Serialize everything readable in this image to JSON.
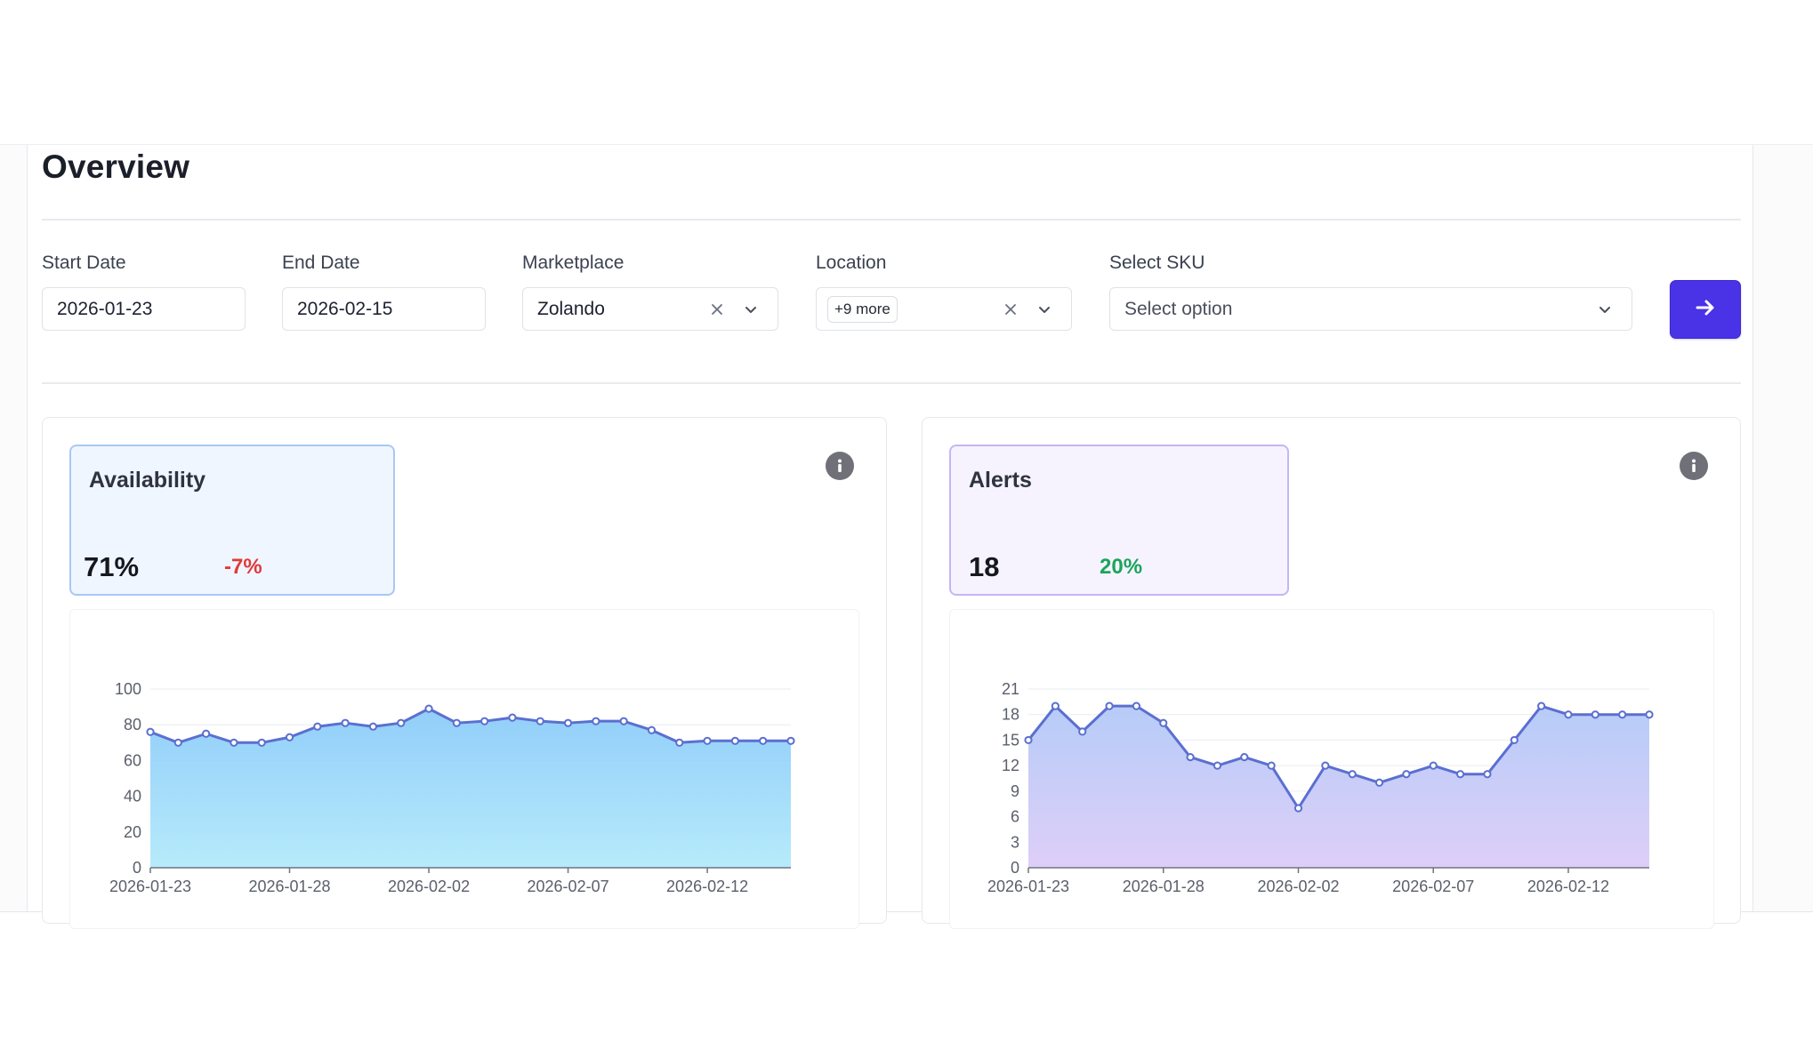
{
  "page": {
    "title": "Overview"
  },
  "filters": {
    "start_date": {
      "label": "Start Date",
      "value": "2026-01-23"
    },
    "end_date": {
      "label": "End Date",
      "value": "2026-02-15"
    },
    "marketplace": {
      "label": "Marketplace",
      "value": "Zolando"
    },
    "location": {
      "label": "Location",
      "chip": "+9 more"
    },
    "sku": {
      "label": "Select SKU",
      "placeholder": "Select option"
    },
    "submit_icon": "arrow-right-icon"
  },
  "colors": {
    "accent": "#4a32e6",
    "negative": "#e03a3a",
    "positive": "#1aa55b",
    "line": "#5b6fd0",
    "availability_kpi_bg": "#f0f6ff",
    "availability_kpi_border": "#a9c8f5",
    "alerts_kpi_bg": "#f6f3ff",
    "alerts_kpi_border": "#c5b6f3"
  },
  "cards": {
    "availability": {
      "title": "Availability",
      "value": "71%",
      "delta": "-7%",
      "delta_sign": "negative"
    },
    "alerts": {
      "title": "Alerts",
      "value": "18",
      "delta": "20%",
      "delta_sign": "positive"
    }
  },
  "chart_data": [
    {
      "type": "area",
      "title": "",
      "xlabel": "",
      "ylabel": "",
      "x": [
        "2026-01-23",
        "2026-01-24",
        "2026-01-25",
        "2026-01-26",
        "2026-01-27",
        "2026-01-28",
        "2026-01-29",
        "2026-01-30",
        "2026-01-31",
        "2026-02-01",
        "2026-02-02",
        "2026-02-03",
        "2026-02-04",
        "2026-02-05",
        "2026-02-06",
        "2026-02-07",
        "2026-02-08",
        "2026-02-09",
        "2026-02-10",
        "2026-02-11",
        "2026-02-12",
        "2026-02-13",
        "2026-02-14",
        "2026-02-15"
      ],
      "values": [
        76,
        70,
        75,
        70,
        70,
        73,
        79,
        81,
        79,
        81,
        89,
        81,
        82,
        84,
        82,
        81,
        82,
        82,
        77,
        70,
        71,
        71,
        71,
        71
      ],
      "ylim": [
        0,
        100
      ],
      "yticks": [
        "0",
        "20",
        "40",
        "60",
        "80",
        "100"
      ],
      "xticks": [
        "2026-01-23",
        "2026-01-28",
        "2026-02-02",
        "2026-02-07",
        "2026-02-12"
      ],
      "grid": true,
      "gradient": [
        "#8ccbf9",
        "#b3eafb"
      ]
    },
    {
      "type": "area",
      "title": "",
      "xlabel": "",
      "ylabel": "",
      "x": [
        "2026-01-23",
        "2026-01-24",
        "2026-01-25",
        "2026-01-26",
        "2026-01-27",
        "2026-01-28",
        "2026-01-29",
        "2026-01-30",
        "2026-01-31",
        "2026-02-01",
        "2026-02-02",
        "2026-02-03",
        "2026-02-04",
        "2026-02-05",
        "2026-02-06",
        "2026-02-07",
        "2026-02-08",
        "2026-02-09",
        "2026-02-10",
        "2026-02-11",
        "2026-02-12",
        "2026-02-13",
        "2026-02-14",
        "2026-02-15"
      ],
      "values": [
        15,
        19,
        16,
        19,
        19,
        17,
        13,
        12,
        13,
        12,
        7,
        12,
        11,
        10,
        11,
        12,
        11,
        11,
        15,
        19,
        18,
        18,
        18,
        18
      ],
      "ylim": [
        0,
        21
      ],
      "yticks": [
        "0",
        "3",
        "6",
        "9",
        "12",
        "15",
        "18",
        "21"
      ],
      "xticks": [
        "2026-01-23",
        "2026-01-28",
        "2026-02-02",
        "2026-02-07",
        "2026-02-12"
      ],
      "grid": true,
      "gradient": [
        "#b3c9f7",
        "#dcccf8"
      ]
    }
  ]
}
